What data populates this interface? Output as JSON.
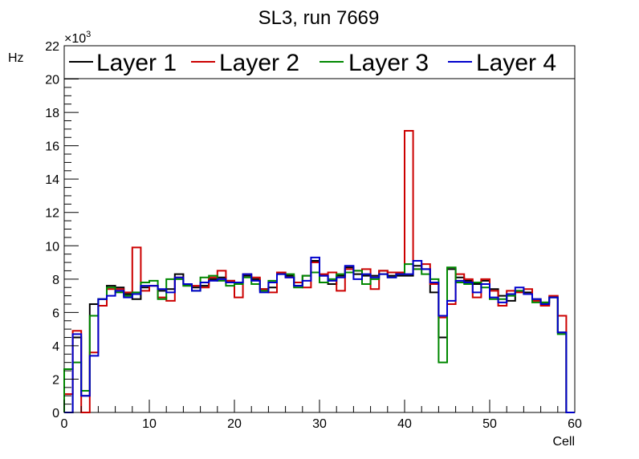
{
  "chart_data": {
    "type": "histogram-step",
    "title": "SL3, run 7669",
    "xlabel": "Cell",
    "ylabel": "Hz",
    "exponent_base": "×10",
    "exponent_power": "3",
    "xlim": [
      0,
      60
    ],
    "ylim": [
      0,
      22
    ],
    "xticks": [
      "0",
      "10",
      "20",
      "30",
      "40",
      "50",
      "60"
    ],
    "yticks": [
      "0",
      "2",
      "4",
      "6",
      "8",
      "10",
      "12",
      "14",
      "16",
      "18",
      "20",
      "22"
    ],
    "bin_edges_start": 0,
    "bin_width": 1,
    "series": [
      {
        "name": "Layer 1",
        "color": "#000000",
        "values": [
          0,
          4.5,
          1.0,
          6.5,
          6.8,
          7.6,
          7.5,
          7.1,
          6.8,
          7.5,
          7.6,
          7.3,
          7.4,
          8.3,
          7.6,
          7.5,
          7.6,
          8.0,
          8.1,
          7.9,
          7.8,
          8.2,
          8.0,
          7.4,
          7.5,
          8.4,
          8.2,
          7.6,
          8.2,
          9.1,
          8.2,
          7.7,
          8.2,
          8.7,
          8.3,
          8.2,
          8.2,
          8.5,
          8.2,
          8.2,
          8.2,
          8.8,
          8.6,
          7.2,
          4.5,
          8.6,
          8.1,
          7.9,
          7.7,
          7.9,
          7.4,
          7.0,
          6.7,
          7.3,
          7.2,
          6.8,
          6.6,
          6.9,
          4.8,
          0
        ]
      },
      {
        "name": "Layer 2",
        "color": "#cc0000",
        "values": [
          1.1,
          4.9,
          0,
          3.6,
          6.4,
          7.4,
          7.4,
          7.2,
          9.9,
          7.3,
          7.6,
          6.9,
          6.7,
          8.1,
          7.7,
          7.6,
          7.5,
          8.1,
          8.5,
          7.9,
          6.9,
          8.3,
          8.1,
          7.4,
          7.2,
          8.4,
          8.1,
          7.8,
          7.5,
          9.0,
          8.3,
          8.4,
          7.3,
          8.6,
          8.5,
          8.6,
          7.4,
          8.5,
          8.4,
          8.4,
          16.9,
          8.6,
          8.9,
          7.7,
          5.7,
          6.5,
          8.3,
          8.0,
          6.9,
          8.0,
          7.3,
          6.4,
          7.3,
          7.2,
          7.4,
          6.7,
          6.4,
          7.0,
          5.8,
          0
        ]
      },
      {
        "name": "Layer 3",
        "color": "#008800",
        "values": [
          2.6,
          3.0,
          1.3,
          5.8,
          6.8,
          7.5,
          7.2,
          7.0,
          7.2,
          7.8,
          7.9,
          6.8,
          8.0,
          8.0,
          7.6,
          7.3,
          8.1,
          8.2,
          7.9,
          7.6,
          7.7,
          8.1,
          7.7,
          7.3,
          7.9,
          8.3,
          8.3,
          7.5,
          8.2,
          8.4,
          7.8,
          8.0,
          8.3,
          8.4,
          8.5,
          7.7,
          8.0,
          8.3,
          8.1,
          8.3,
          8.9,
          8.6,
          8.3,
          8.0,
          3.0,
          8.7,
          7.8,
          7.7,
          7.8,
          7.5,
          6.8,
          6.8,
          7.0,
          7.3,
          7.1,
          6.6,
          6.6,
          6.9,
          4.7,
          0
        ]
      },
      {
        "name": "Layer 4",
        "color": "#0000cc",
        "values": [
          0,
          4.7,
          1.0,
          3.4,
          6.8,
          7.0,
          7.3,
          6.9,
          7.1,
          7.6,
          7.6,
          7.4,
          7.2,
          8.1,
          7.7,
          7.3,
          7.8,
          7.9,
          8.0,
          7.8,
          7.8,
          8.3,
          7.9,
          7.2,
          7.8,
          8.3,
          8.1,
          7.6,
          7.9,
          9.3,
          8.2,
          7.9,
          8.1,
          8.8,
          8.0,
          8.3,
          8.1,
          8.3,
          8.1,
          8.3,
          8.3,
          9.1,
          8.6,
          7.8,
          5.8,
          6.7,
          7.9,
          7.8,
          7.2,
          7.7,
          6.9,
          6.6,
          7.1,
          7.5,
          7.1,
          6.8,
          6.5,
          6.9,
          4.8,
          0
        ]
      }
    ]
  }
}
